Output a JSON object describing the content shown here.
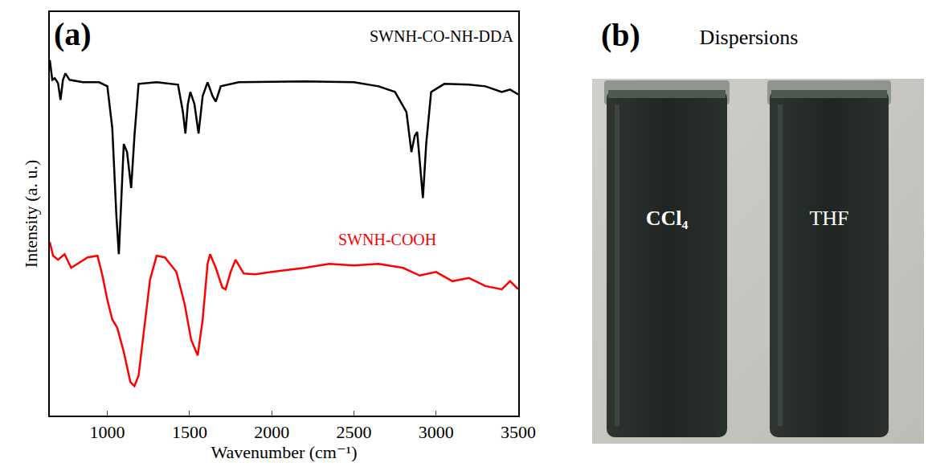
{
  "chart_data": {
    "type": "line",
    "panel_label": "(a)",
    "x_label": "Wavenumber (cm⁻¹)",
    "y_label": "Intensity (a. u.)",
    "xlim": [
      650,
      3500
    ],
    "xticks": [
      1000,
      1500,
      2000,
      2500,
      3000,
      3500
    ],
    "ylim": [
      0,
      10
    ],
    "tick_labels": "x",
    "grid": false,
    "series": [
      {
        "name": "SWNH-CO-NH-DDA",
        "color": "#000000",
        "x": [
          650,
          665,
          680,
          700,
          715,
          730,
          745,
          770,
          850,
          950,
          1000,
          1030,
          1055,
          1070,
          1085,
          1100,
          1120,
          1145,
          1165,
          1190,
          1300,
          1430,
          1460,
          1475,
          1490,
          1505,
          1530,
          1555,
          1580,
          1610,
          1640,
          1660,
          1690,
          1800,
          2200,
          2500,
          2650,
          2750,
          2820,
          2850,
          2870,
          2885,
          2900,
          2920,
          2940,
          2970,
          3050,
          3200,
          3300,
          3400,
          3450,
          3500
        ],
        "values": [
          8.81,
          8.32,
          8.36,
          8.24,
          7.82,
          8.32,
          8.48,
          8.32,
          8.26,
          8.26,
          8.16,
          7.13,
          4.95,
          4.0,
          5.35,
          6.73,
          6.53,
          5.64,
          6.93,
          8.22,
          8.26,
          8.2,
          7.52,
          6.99,
          7.72,
          8.02,
          7.72,
          6.99,
          7.92,
          8.26,
          7.92,
          7.78,
          8.16,
          8.26,
          8.28,
          8.26,
          8.16,
          8.02,
          7.52,
          6.53,
          6.93,
          7.03,
          6.34,
          5.39,
          6.73,
          8.02,
          8.22,
          8.2,
          8.16,
          8.02,
          8.08,
          7.96
        ]
      },
      {
        "name": "SWNH-COOH",
        "color": "#ff0000",
        "x": [
          650,
          670,
          700,
          740,
          780,
          820,
          880,
          940,
          970,
          1000,
          1030,
          1060,
          1100,
          1140,
          1165,
          1190,
          1220,
          1260,
          1300,
          1350,
          1420,
          1470,
          1510,
          1550,
          1580,
          1610,
          1625,
          1660,
          1700,
          1720,
          1750,
          1780,
          1830,
          1900,
          2000,
          2200,
          2350,
          2500,
          2650,
          2800,
          2900,
          3000,
          3100,
          3200,
          3300,
          3400,
          3450,
          3500
        ],
        "values": [
          4.3,
          3.96,
          3.86,
          4.0,
          3.66,
          3.76,
          3.92,
          3.96,
          3.47,
          2.87,
          2.38,
          2.18,
          1.58,
          0.83,
          0.73,
          0.99,
          1.98,
          3.37,
          3.96,
          3.92,
          3.56,
          2.77,
          1.88,
          1.49,
          2.38,
          3.76,
          4.0,
          3.66,
          3.17,
          3.13,
          3.56,
          3.86,
          3.52,
          3.5,
          3.56,
          3.66,
          3.76,
          3.72,
          3.76,
          3.66,
          3.47,
          3.56,
          3.33,
          3.41,
          3.21,
          3.13,
          3.33,
          3.13
        ]
      }
    ]
  },
  "photo": {
    "panel_label": "(b)",
    "title": "Dispersions",
    "vial_labels": [
      "CCl₄",
      "THF"
    ]
  }
}
